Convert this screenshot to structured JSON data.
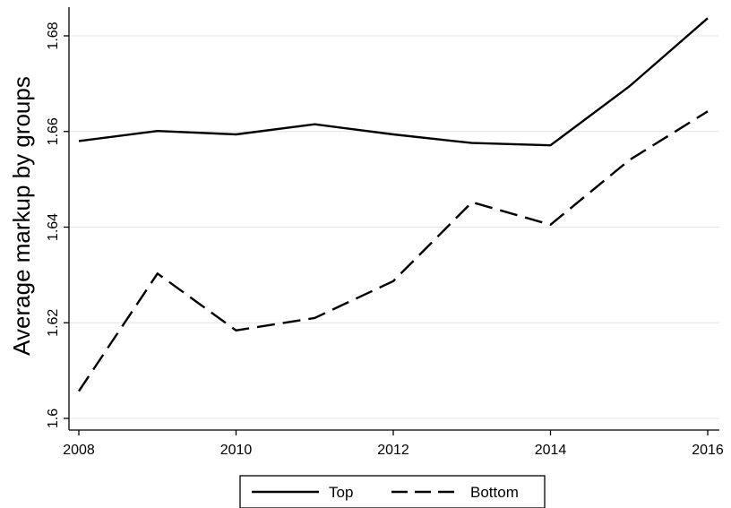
{
  "chart_data": {
    "type": "line",
    "title": "",
    "xlabel": "",
    "ylabel": "Average markup by groups",
    "xlim": [
      2008,
      2016
    ],
    "ylim": [
      1.6,
      1.685
    ],
    "x_ticks": [
      2008,
      2010,
      2012,
      2014,
      2016
    ],
    "x_tick_labels": [
      "2008",
      "2010",
      "2012",
      "2014",
      "2016"
    ],
    "y_ticks": [
      1.6,
      1.62,
      1.64,
      1.66,
      1.68
    ],
    "y_tick_labels": [
      "1.6",
      "1.62",
      "1.64",
      "1.66",
      "1.68"
    ],
    "grid": true,
    "legend_position": "bottom",
    "x": [
      2008,
      2009,
      2010,
      2011,
      2012,
      2013,
      2014,
      2015,
      2016
    ],
    "series": [
      {
        "name": "Top",
        "style": "solid",
        "color": "#000000",
        "values": [
          1.658,
          1.6601,
          1.6594,
          1.6615,
          1.6594,
          1.6576,
          1.6571,
          1.6694,
          1.6837
        ]
      },
      {
        "name": "Bottom",
        "style": "dashed",
        "color": "#000000",
        "values": [
          1.6057,
          1.6303,
          1.6184,
          1.621,
          1.6287,
          1.6452,
          1.6405,
          1.654,
          1.6642
        ]
      }
    ]
  }
}
